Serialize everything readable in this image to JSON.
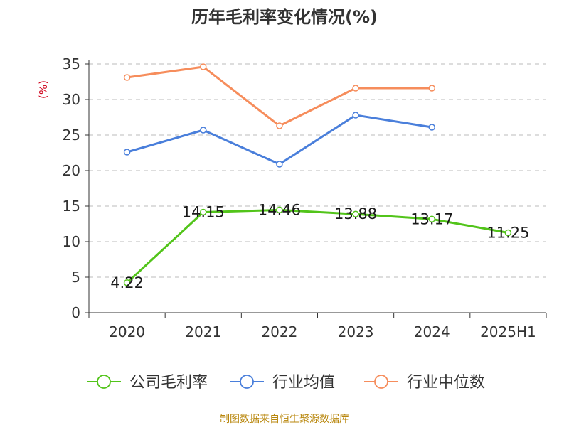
{
  "chart_data": {
    "type": "line",
    "title": "历年毛利率变化情况(%)",
    "ylabel": "(%)",
    "xlabel": "",
    "categories": [
      "2020",
      "2021",
      "2022",
      "2023",
      "2024",
      "2025H1"
    ],
    "ylim": [
      0,
      35
    ],
    "yticks": [
      0,
      5,
      10,
      15,
      20,
      25,
      30,
      35
    ],
    "grid": true,
    "legend_position": "bottom",
    "series": [
      {
        "name": "公司毛利率",
        "color": "#52c41a",
        "values": [
          4.22,
          14.15,
          14.46,
          13.88,
          13.17,
          11.25
        ],
        "labels": [
          "4.22",
          "14.15",
          "14.46",
          "13.88",
          "13.17",
          "11.25"
        ],
        "show_labels": true
      },
      {
        "name": "行业均值",
        "color": "#4a7fdb",
        "values": [
          22.6,
          25.7,
          20.9,
          27.8,
          26.1,
          null
        ],
        "show_labels": false
      },
      {
        "name": "行业中位数",
        "color": "#f68d5c",
        "values": [
          33.1,
          34.6,
          26.3,
          31.6,
          31.6,
          null
        ],
        "show_labels": false
      }
    ]
  },
  "footer": {
    "source": "制图数据来自恒生聚源数据库"
  },
  "colors": {
    "title": "#333333",
    "axis": "#333333",
    "grid": "#bbbbbb",
    "ylabel": "#d0021b",
    "source": "#b8860b"
  }
}
